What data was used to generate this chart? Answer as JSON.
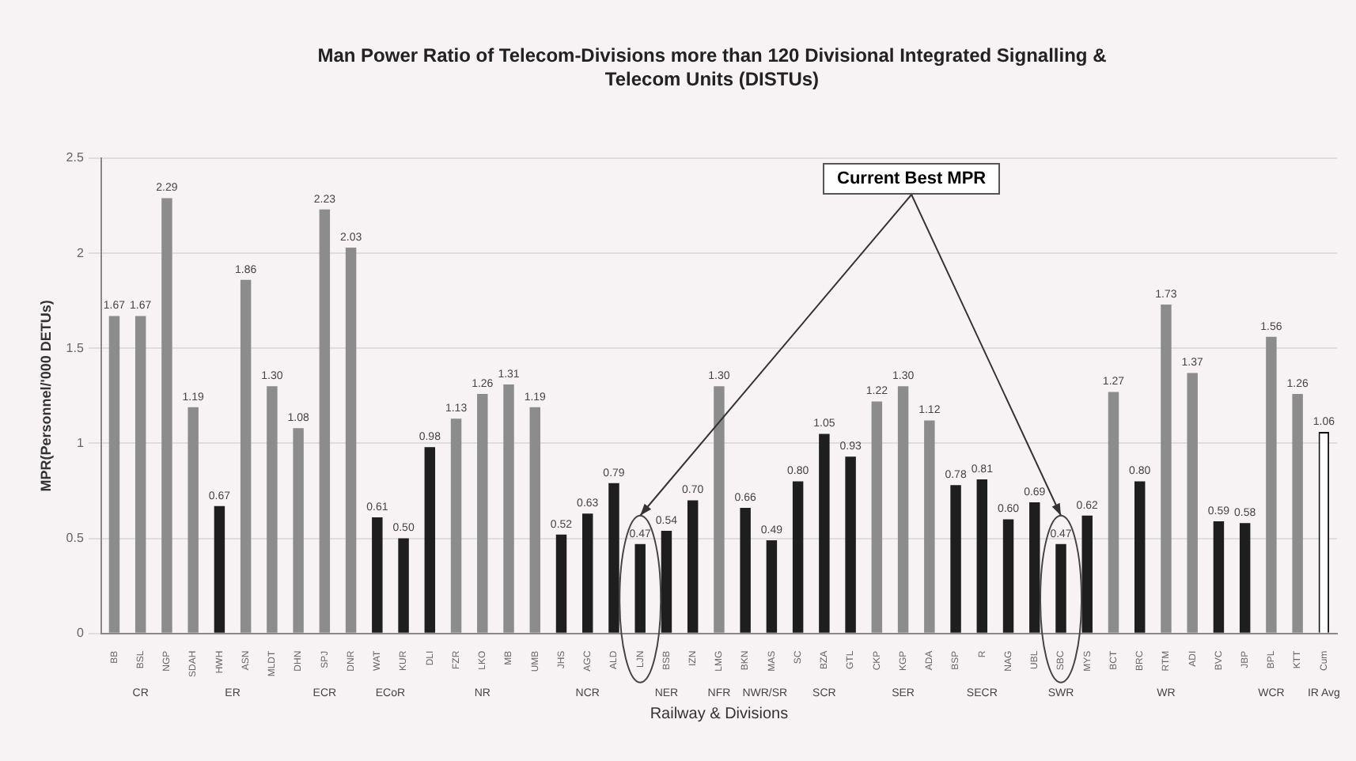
{
  "chart_data": {
    "type": "bar",
    "title": "Man Power Ratio of Telecom-Divisions more than 120 Divisional Integrated Signalling & Telecom Units (DISTUs)",
    "xlabel": "Railway & Divisions",
    "ylabel": "MPR(Personnel/'000 DETUs)",
    "categories": [
      "BB",
      "BSL",
      "NGP",
      "SDAH",
      "HWH",
      "ASN",
      "MLDT",
      "DHN",
      "SPJ",
      "DNR",
      "WAT",
      "KUR",
      "DLI",
      "FZR",
      "LKO",
      "MB",
      "UMB",
      "JHS",
      "AGC",
      "ALD",
      "LJN",
      "BSB",
      "IZN",
      "LMG",
      "BKN",
      "MAS",
      "SC",
      "BZA",
      "GTL",
      "CKP",
      "KGP",
      "ADA",
      "BSP",
      "R",
      "NAG",
      "UBL",
      "SBC",
      "MYS",
      "BCT",
      "BRC",
      "RTM",
      "ADI",
      "BVC",
      "JBP",
      "BPL",
      "KTT",
      "Cum"
    ],
    "values": [
      1.67,
      1.67,
      2.29,
      1.19,
      0.67,
      1.86,
      1.3,
      1.08,
      2.23,
      2.03,
      0.61,
      0.5,
      0.98,
      1.13,
      1.26,
      1.31,
      1.19,
      0.52,
      0.63,
      0.79,
      0.47,
      0.54,
      0.7,
      1.3,
      0.66,
      0.49,
      0.8,
      1.05,
      0.93,
      1.22,
      1.3,
      1.12,
      0.78,
      0.81,
      0.6,
      0.69,
      0.47,
      0.62,
      1.27,
      0.8,
      1.73,
      1.37,
      0.59,
      0.58,
      1.56,
      1.26,
      1.06
    ],
    "value_labels": [
      "1.67",
      "1.67",
      "2.29",
      "1.19",
      "0.67",
      "1.86",
      "1.30",
      "1.08",
      "2.23",
      "2.03",
      "0.61",
      "0.50",
      "0.98",
      "1.13",
      "1.26",
      "1.31",
      "1.19",
      "0.52",
      "0.63",
      "0.79",
      "0.47",
      "0.54",
      "0.70",
      "1.30",
      "0.66",
      "0.49",
      "0.80",
      "1.05",
      "0.93",
      "1.22",
      "1.30",
      "1.12",
      "0.78",
      "0.81",
      "0.60",
      "0.69",
      "0.47",
      "0.62",
      "1.27",
      "0.80",
      "1.73",
      "1.37",
      "0.59",
      "0.58",
      "1.56",
      "1.26",
      "1.06"
    ],
    "colors": [
      "#8c8c8c",
      "#8c8c8c",
      "#8c8c8c",
      "#8c8c8c",
      "#1e1e1e",
      "#8c8c8c",
      "#8c8c8c",
      "#8c8c8c",
      "#8c8c8c",
      "#8c8c8c",
      "#1e1e1e",
      "#1e1e1e",
      "#1e1e1e",
      "#8c8c8c",
      "#8c8c8c",
      "#8c8c8c",
      "#8c8c8c",
      "#1e1e1e",
      "#1e1e1e",
      "#1e1e1e",
      "#1e1e1e",
      "#1e1e1e",
      "#1e1e1e",
      "#8c8c8c",
      "#1e1e1e",
      "#1e1e1e",
      "#1e1e1e",
      "#1e1e1e",
      "#1e1e1e",
      "#8c8c8c",
      "#8c8c8c",
      "#8c8c8c",
      "#1e1e1e",
      "#1e1e1e",
      "#1e1e1e",
      "#1e1e1e",
      "#1e1e1e",
      "#1e1e1e",
      "#8c8c8c",
      "#1e1e1e",
      "#8c8c8c",
      "#8c8c8c",
      "#1e1e1e",
      "#1e1e1e",
      "#8c8c8c",
      "#8c8c8c",
      "#ffffff"
    ],
    "ylim": [
      0,
      2.5
    ],
    "yticks": [
      0,
      0.5,
      {
        "value": 1,
        "label": "1"
      },
      1.5,
      {
        "value": 2,
        "label": "2"
      },
      2.5
    ],
    "grid": "y",
    "annotations": [
      "Current Best MPR",
      "CR",
      "ER",
      "ECR",
      "ECoR",
      "NR",
      "NCR",
      "NER",
      "NFR",
      "NWR/SR",
      "SCR",
      "SER",
      "SECR",
      "SWR",
      "WR",
      "WCR",
      "IR Avg"
    ]
  }
}
